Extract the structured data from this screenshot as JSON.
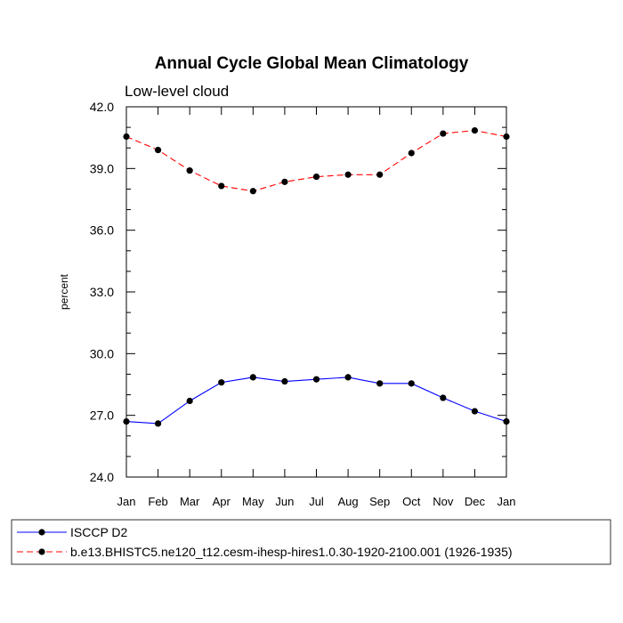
{
  "chart_data": {
    "type": "line",
    "title": "Annual Cycle Global Mean Climatology",
    "subtitle": "Low-level cloud",
    "xlabel": "",
    "ylabel": "percent",
    "categories": [
      "Jan",
      "Feb",
      "Mar",
      "Apr",
      "May",
      "Jun",
      "Jul",
      "Aug",
      "Sep",
      "Oct",
      "Nov",
      "Dec",
      "Jan"
    ],
    "ylim": [
      24.0,
      42.0
    ],
    "yticks": [
      "24.0",
      "27.0",
      "30.0",
      "33.0",
      "36.0",
      "39.0",
      "42.0"
    ],
    "legend_position": "bottom",
    "grid": false,
    "series": [
      {
        "name": "ISCCP D2",
        "color": "#0000ff",
        "line_style": "solid",
        "values": [
          26.7,
          26.6,
          27.7,
          28.6,
          28.85,
          28.65,
          28.75,
          28.85,
          28.55,
          28.55,
          27.85,
          27.2,
          26.7
        ]
      },
      {
        "name": "b.e13.BHISTC5.ne120_t12.cesm-ihesp-hires1.0.30-1920-2100.001 (1926-1935)",
        "color": "#ff0000",
        "line_style": "dashed",
        "values": [
          40.55,
          39.9,
          38.9,
          38.15,
          37.9,
          38.35,
          38.6,
          38.7,
          38.7,
          39.75,
          40.7,
          40.85,
          40.55
        ]
      }
    ]
  }
}
